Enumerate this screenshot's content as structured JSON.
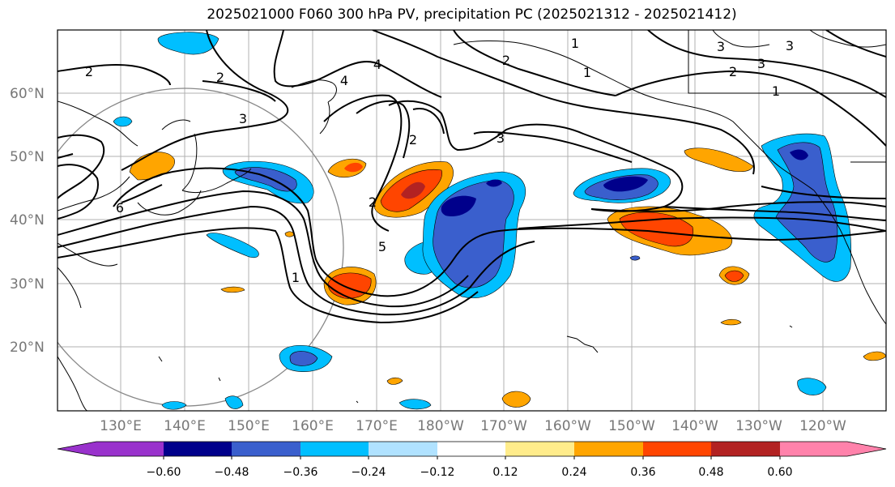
{
  "title": "2025021000 F060 300 hPa PV, precipitation PC (2025021312 - 2025021412)",
  "lat_labels": [
    "60°N",
    "50°N",
    "40°N",
    "30°N",
    "20°N"
  ],
  "lon_labels": [
    "130°E",
    "140°E",
    "150°E",
    "160°E",
    "170°E",
    "180°W",
    "170°W",
    "160°W",
    "150°W",
    "140°W",
    "130°W",
    "120°W"
  ],
  "colorbar": {
    "tick_labels": [
      "−0.60",
      "−0.48",
      "−0.36",
      "−0.24",
      "−0.12",
      "0.12",
      "0.24",
      "0.36",
      "0.48",
      "0.60"
    ],
    "colors": [
      "#9932cc",
      "#00008b",
      "#3a5fcd",
      "#00bfff",
      "#b0e2ff",
      "#ffffff",
      "#ffec8b",
      "#ffa500",
      "#ff4500",
      "#b22222",
      "#ff82ab"
    ]
  },
  "contour_labels": [
    {
      "text": "2"
    },
    {
      "text": "2"
    },
    {
      "text": "3"
    },
    {
      "text": "4"
    },
    {
      "text": "1"
    },
    {
      "text": "1"
    },
    {
      "text": "4"
    },
    {
      "text": "2"
    },
    {
      "text": "3"
    },
    {
      "text": "1"
    },
    {
      "text": "3"
    },
    {
      "text": "2"
    },
    {
      "text": "3"
    },
    {
      "text": "2"
    },
    {
      "text": "3"
    },
    {
      "text": "5"
    },
    {
      "text": "1"
    },
    {
      "text": "6"
    },
    {
      "text": "2"
    }
  ]
}
